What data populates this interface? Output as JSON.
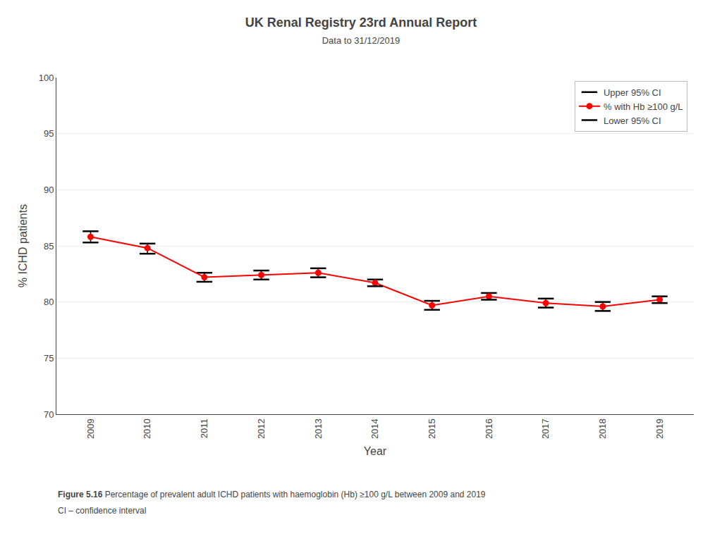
{
  "chart_data": {
    "type": "line",
    "title": "UK Renal Registry 23rd Annual Report",
    "subtitle": "Data to 31/12/2019",
    "x_label": "Year",
    "y_label": "% ICHD patients",
    "x": [
      2009,
      2010,
      2011,
      2012,
      2013,
      2014,
      2015,
      2016,
      2017,
      2018,
      2019
    ],
    "xlim": [
      2008.4,
      2019.6
    ],
    "xticks": [
      2009,
      2010,
      2011,
      2012,
      2013,
      2014,
      2015,
      2016,
      2017,
      2018,
      2019
    ],
    "ylim": [
      70,
      100
    ],
    "yticks": [
      70,
      75,
      80,
      85,
      90,
      95,
      100
    ],
    "grid": "y",
    "legend": "upper right",
    "series": [
      {
        "name": "% with Hb ≥100 g/L",
        "color": "#FF0000",
        "marker": "circle",
        "line_style": "solid",
        "values": [
          85.8,
          84.8,
          82.2,
          82.4,
          82.6,
          81.7,
          79.7,
          80.5,
          79.9,
          79.6,
          80.2
        ],
        "upper_ci": [
          86.3,
          85.2,
          82.6,
          82.8,
          83.0,
          82.0,
          80.1,
          80.8,
          80.3,
          80.0,
          80.5
        ],
        "lower_ci": [
          85.3,
          84.3,
          81.8,
          82.0,
          82.2,
          81.4,
          79.3,
          80.2,
          79.5,
          79.2,
          79.9
        ],
        "upper_ci_name": "Upper 95% CI",
        "lower_ci_name": "Lower 95% CI",
        "ci_color": "#000000"
      }
    ],
    "caption_bold": "Figure 5.16",
    "caption": "Percentage of prevalent adult ICHD patients with haemoglobin (Hb) ≥100 g/L between 2009 and 2019",
    "note": "CI – confidence interval"
  }
}
